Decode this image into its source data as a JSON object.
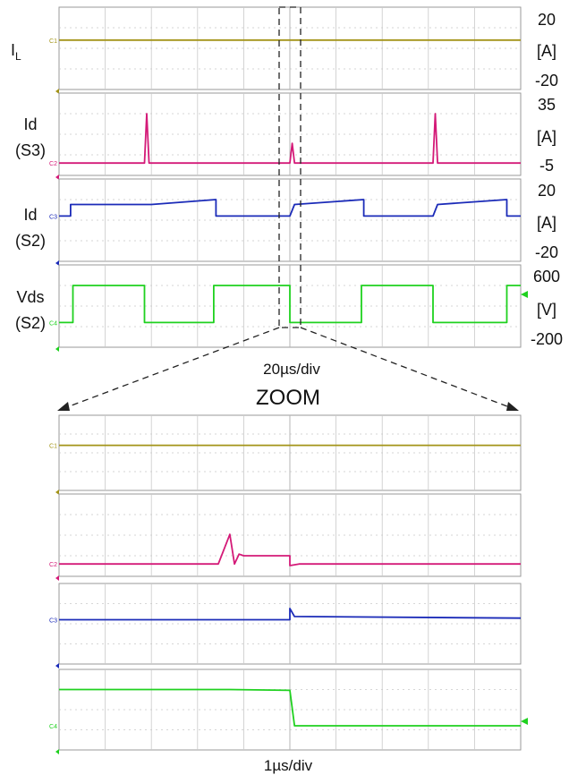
{
  "top": {
    "labels": [
      {
        "main": "I",
        "sub": "L"
      },
      {
        "main": "Id",
        "line2": "(S3)"
      },
      {
        "main": "Id",
        "line2": "(S2)"
      },
      {
        "main": "Vds",
        "line2": "(S2)"
      }
    ],
    "scales": [
      {
        "max": "20",
        "unit": "[A]",
        "min": "-20"
      },
      {
        "max": "35",
        "unit": "[A]",
        "min": "-5"
      },
      {
        "max": "20",
        "unit": "[A]",
        "min": "-20"
      },
      {
        "max": "600",
        "unit": "[V]",
        "min": "-200"
      }
    ],
    "time_div": "20µs/div"
  },
  "zoom_label": "ZOOM",
  "bottom": {
    "time_div": "1µs/div"
  },
  "channel_tags": [
    "C1",
    "C2",
    "C3",
    "C4"
  ],
  "colors": {
    "ch1": "#a39418",
    "ch2": "#d41a78",
    "ch3": "#1b2bb8",
    "ch4": "#1fd11f",
    "grid": "#c9c9c9",
    "frame": "#999999"
  },
  "chart_data": [
    {
      "type": "line",
      "x_unit": "div",
      "x_range": [
        0,
        10
      ],
      "series": [
        {
          "tag": "C1",
          "y_range": [
            -20,
            20
          ],
          "y": [
            0,
            0
          ]
        },
        {
          "tag": "C2",
          "y_range": [
            -5,
            35
          ],
          "x": [
            0,
            1.85,
            1.9,
            1.95,
            5.0,
            5.05,
            5.1,
            8.1,
            8.15,
            8.2,
            10
          ],
          "y": [
            0,
            0,
            30,
            0,
            0,
            12,
            0,
            0,
            30,
            0,
            0
          ]
        },
        {
          "tag": "C3",
          "y_range": [
            -20,
            20
          ],
          "x": [
            0,
            0.25,
            0.25,
            1.85,
            1.9,
            2.0,
            3.4,
            3.4,
            5.0,
            5.1,
            6.6,
            6.6,
            8.1,
            8.2,
            9.7,
            9.7,
            10
          ],
          "y": [
            0,
            0,
            7,
            7,
            7,
            7,
            10,
            0,
            0,
            7,
            10,
            0,
            0,
            7,
            10,
            0,
            0
          ]
        },
        {
          "tag": "C4",
          "y_range": [
            -200,
            600
          ],
          "x": [
            0,
            0.3,
            0.3,
            1.85,
            1.85,
            3.35,
            3.35,
            5.0,
            5.0,
            6.55,
            6.55,
            8.1,
            8.1,
            9.7,
            9.7,
            10
          ],
          "y": [
            0,
            0,
            450,
            450,
            0,
            0,
            450,
            450,
            0,
            0,
            450,
            450,
            0,
            0,
            450,
            450
          ]
        }
      ]
    },
    {
      "type": "line",
      "x_unit": "div",
      "x_range": [
        0,
        10
      ],
      "series": [
        {
          "tag": "C1",
          "y_range": [
            -20,
            20
          ],
          "y": [
            0,
            0
          ]
        },
        {
          "tag": "C2",
          "y_range": [
            -5,
            35
          ],
          "x": [
            0,
            3.45,
            3.7,
            3.8,
            3.9,
            4.0,
            5.0,
            5.0,
            5.2,
            10
          ],
          "y": [
            0,
            0,
            18,
            0,
            6,
            5,
            5,
            -1,
            0,
            0
          ]
        },
        {
          "tag": "C3",
          "y_range": [
            -20,
            20
          ],
          "x": [
            0,
            3.7,
            3.8,
            5.0,
            5.0,
            5.1,
            10
          ],
          "y": [
            0,
            0,
            0,
            0,
            7,
            2,
            1
          ]
        },
        {
          "tag": "C4",
          "y_range": [
            -200,
            600
          ],
          "x": [
            0,
            3.7,
            5.0,
            5.1,
            10
          ],
          "y": [
            450,
            450,
            440,
            0,
            0
          ]
        }
      ]
    }
  ]
}
